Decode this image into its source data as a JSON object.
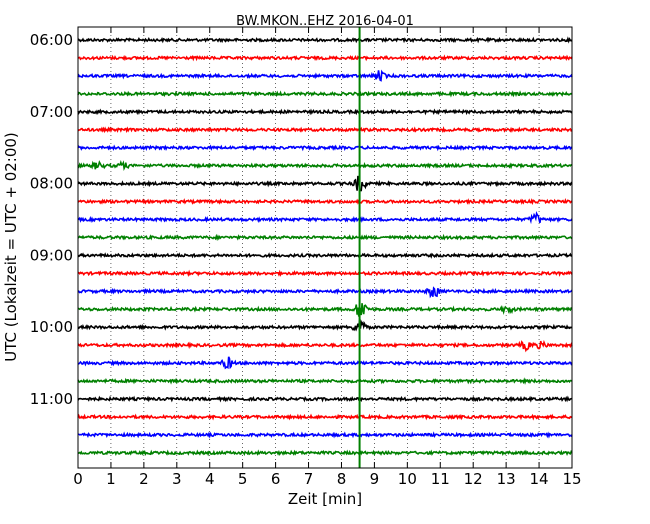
{
  "chart_data": {
    "type": "line",
    "title": "BW.MKON..EHZ 2016-04-01",
    "xlabel": "Zeit  [min]",
    "ylabel": "UTC (Lokalzeit = UTC + 02:00)",
    "xlim": [
      0,
      15
    ],
    "x_ticks": [
      "0",
      "1",
      "2",
      "3",
      "4",
      "5",
      "6",
      "7",
      "8",
      "9",
      "10",
      "11",
      "12",
      "13",
      "14",
      "15"
    ],
    "y_tick_labels": [
      "06:00",
      "07:00",
      "08:00",
      "09:00",
      "10:00",
      "11:00"
    ],
    "trace_interval_minutes": 15,
    "trace_color_cycle": [
      "#000000",
      "#ff0000",
      "#0000ff",
      "#008000"
    ],
    "grid": true,
    "traces": [
      {
        "start": "06:00",
        "color": "#000000",
        "events": []
      },
      {
        "start": "06:15",
        "color": "#ff0000",
        "events": []
      },
      {
        "start": "06:30",
        "color": "#0000ff",
        "events": [
          {
            "minute": 9.15,
            "amplitude": 0.7
          }
        ]
      },
      {
        "start": "06:45",
        "color": "#008000",
        "events": []
      },
      {
        "start": "07:00",
        "color": "#000000",
        "events": []
      },
      {
        "start": "07:15",
        "color": "#ff0000",
        "events": []
      },
      {
        "start": "07:30",
        "color": "#0000ff",
        "events": []
      },
      {
        "start": "07:45",
        "color": "#008000",
        "events": [
          {
            "minute": 0.6,
            "amplitude": 0.5
          },
          {
            "minute": 1.35,
            "amplitude": 0.4
          }
        ]
      },
      {
        "start": "08:00",
        "color": "#000000",
        "events": [
          {
            "minute": 8.55,
            "amplitude": 1.2
          }
        ]
      },
      {
        "start": "08:15",
        "color": "#ff0000",
        "events": []
      },
      {
        "start": "08:30",
        "color": "#0000ff",
        "events": [
          {
            "minute": 13.9,
            "amplitude": 0.8
          }
        ]
      },
      {
        "start": "08:45",
        "color": "#008000",
        "events": []
      },
      {
        "start": "09:00",
        "color": "#000000",
        "events": []
      },
      {
        "start": "09:15",
        "color": "#ff0000",
        "events": []
      },
      {
        "start": "09:30",
        "color": "#0000ff",
        "events": [
          {
            "minute": 10.8,
            "amplitude": 0.9
          }
        ]
      },
      {
        "start": "09:45",
        "color": "#008000",
        "events": [
          {
            "minute": 8.6,
            "amplitude": 1.5
          },
          {
            "minute": 13.05,
            "amplitude": 0.5
          }
        ]
      },
      {
        "start": "10:00",
        "color": "#000000",
        "events": [
          {
            "minute": 8.55,
            "amplitude": 1.2
          }
        ]
      },
      {
        "start": "10:15",
        "color": "#ff0000",
        "events": [
          {
            "minute": 13.6,
            "amplitude": 0.6
          },
          {
            "minute": 14.05,
            "amplitude": 0.4
          }
        ]
      },
      {
        "start": "10:30",
        "color": "#0000ff",
        "events": [
          {
            "minute": 4.55,
            "amplitude": 0.8
          }
        ]
      },
      {
        "start": "10:45",
        "color": "#008000",
        "events": []
      },
      {
        "start": "11:00",
        "color": "#000000",
        "events": []
      },
      {
        "start": "11:15",
        "color": "#ff0000",
        "events": []
      },
      {
        "start": "11:30",
        "color": "#0000ff",
        "events": []
      },
      {
        "start": "11:45",
        "color": "#008000",
        "events": []
      }
    ],
    "vertical_marker": {
      "minute": 8.55,
      "color": "#008000"
    }
  }
}
